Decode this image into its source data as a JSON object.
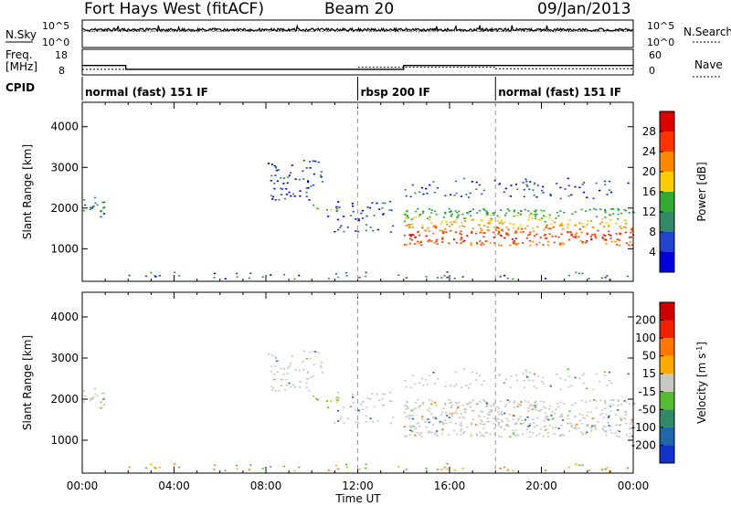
{
  "header": {
    "station": "Fort Hays West (fitACF)",
    "beam": "Beam 20",
    "date": "09/Jan/2013"
  },
  "noise_panel": {
    "left_label": "N.Sky",
    "right_label": "N.Search",
    "ticks_left": [
      "10^5",
      "10^0"
    ],
    "ticks_right": [
      "10^5",
      "10^0"
    ]
  },
  "freq_panel": {
    "left_label_line1": "Freq.",
    "left_label_line2": "[MHz]",
    "right_label": "Nave",
    "ticks_left": [
      "18",
      "8"
    ],
    "ticks_right": [
      "60",
      "0"
    ]
  },
  "cpid": {
    "label": "CPID",
    "segments": [
      {
        "text": "normal (fast) 151 IF",
        "start_hour": 0
      },
      {
        "text": "rbsp 200 IF",
        "start_hour": 12
      },
      {
        "text": "normal (fast) 151 IF",
        "start_hour": 18
      }
    ]
  },
  "x_axis": {
    "label": "Time UT",
    "ticks": [
      "00:00",
      "04:00",
      "08:00",
      "12:00",
      "16:00",
      "20:00",
      "00:00"
    ]
  },
  "power_panel": {
    "ylabel": "Slant Range [km]",
    "yticks": [
      "1000",
      "2000",
      "3000",
      "4000"
    ],
    "colorbar_label": "Power [dB]",
    "colorbar_ticks": [
      "4",
      "8",
      "12",
      "16",
      "20",
      "24",
      "28"
    ],
    "colors": [
      "#0000dd",
      "#2244cc",
      "#338866",
      "#33aa33",
      "#ffcc00",
      "#ff8800",
      "#ff3300",
      "#dd0000"
    ]
  },
  "velocity_panel": {
    "ylabel": "Slant Range [km]",
    "yticks": [
      "1000",
      "2000",
      "3000",
      "4000"
    ],
    "colorbar_label": "Velocity [m s",
    "colorbar_label_sup": "-1",
    "colorbar_label_tail": "]",
    "colorbar_ticks": [
      "200",
      "100",
      "50",
      "15",
      "-15",
      "-50",
      "-100",
      "-200"
    ],
    "colors": [
      "#1133cc",
      "#2266aa",
      "#338866",
      "#55bb33",
      "#c8c8c0",
      "#ffaa00",
      "#ff7700",
      "#ee2200",
      "#cc0000"
    ]
  },
  "chart_data": {
    "type": "heatmap",
    "x_range_hours": [
      0,
      24
    ],
    "y_range_km": [
      200,
      4600
    ],
    "cpid_changes_hours": [
      12,
      18
    ],
    "frequency_mhz": [
      {
        "from": 0,
        "to": 1.9,
        "value": 13.5
      },
      {
        "from": 1.9,
        "to": 14.0,
        "value": 11.0
      },
      {
        "from": 14.0,
        "to": 24,
        "value": 13.5
      }
    ],
    "nave": [
      {
        "from": 0,
        "to": 12.0,
        "value": 18
      },
      {
        "from": 12.0,
        "to": 18.0,
        "value": 26
      },
      {
        "from": 18.0,
        "to": 24,
        "value": 20
      }
    ],
    "scatter_regions": [
      {
        "name": "early-echo",
        "t0": 0.0,
        "t1": 1.0,
        "r0": 1800,
        "r1": 2300,
        "power_db": 10,
        "velocity": 0,
        "density": 0.8
      },
      {
        "name": "mid-2000",
        "t0": 10.0,
        "t1": 11.2,
        "r0": 1950,
        "r1": 2100,
        "power_db": 14,
        "velocity": 30,
        "density": 0.85
      },
      {
        "name": "rising-arc",
        "t0": 8.0,
        "t1": 10.5,
        "r0": 2200,
        "r1": 3200,
        "power_db": 6,
        "velocity": 0,
        "density": 0.45
      },
      {
        "name": "descending",
        "t0": 10.5,
        "t1": 13.5,
        "r0": 1400,
        "r1": 2200,
        "power_db": 5,
        "velocity": 20,
        "density": 0.35
      },
      {
        "name": "main-band",
        "t0": 14.0,
        "t1": 24.0,
        "r0": 1100,
        "r1": 2000,
        "power_db": 20,
        "velocity": 0,
        "density": 0.95
      },
      {
        "name": "upper-band",
        "t0": 14.0,
        "t1": 24.0,
        "r0": 2250,
        "r1": 2750,
        "power_db": 6,
        "velocity": 0,
        "density": 0.3
      },
      {
        "name": "ground-layer",
        "t0": 0.0,
        "t1": 24.0,
        "r0": 250,
        "r1": 450,
        "power_db": 8,
        "velocity": 20,
        "density": 0.2
      }
    ]
  }
}
